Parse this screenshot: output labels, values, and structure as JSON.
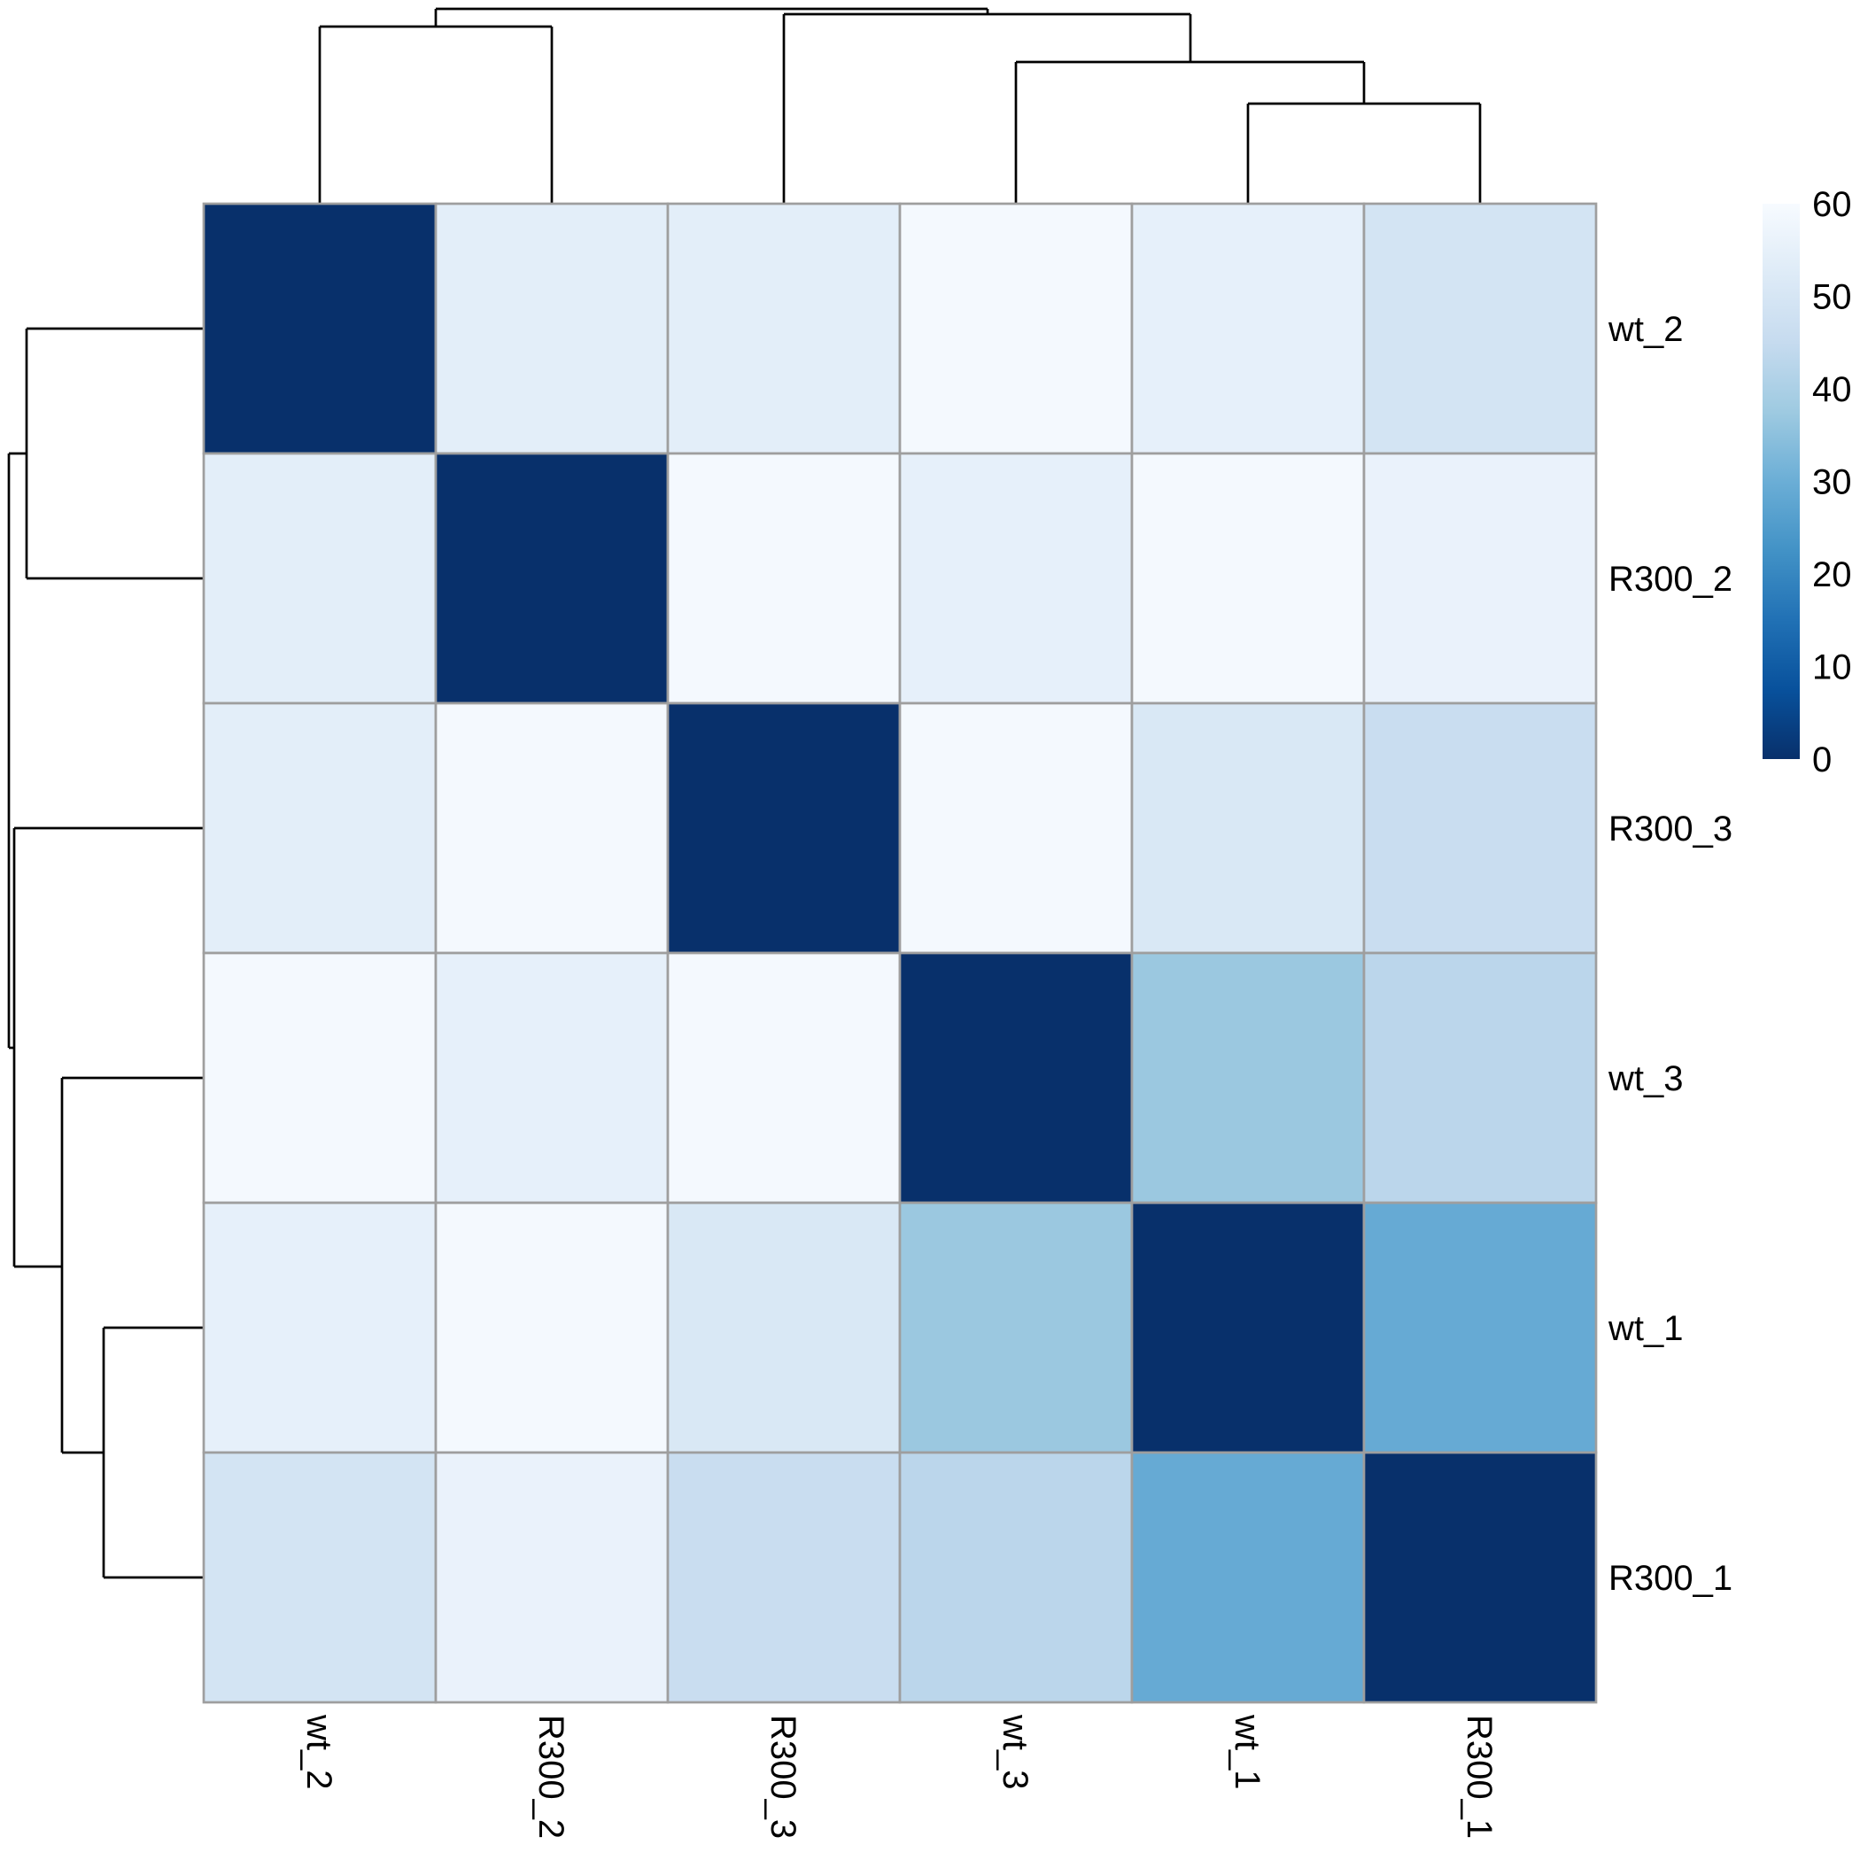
{
  "chart_data": {
    "type": "heatmap",
    "title": "",
    "xlabel": "",
    "ylabel": "",
    "col_labels": [
      "wt_2",
      "R300_2",
      "R300_3",
      "wt_3",
      "wt_1",
      "R300_1"
    ],
    "row_labels": [
      "wt_2",
      "R300_2",
      "R300_3",
      "wt_3",
      "wt_1",
      "R300_1"
    ],
    "values": [
      [
        0,
        54,
        54,
        59,
        55,
        49
      ],
      [
        54,
        0,
        59,
        55,
        59,
        56
      ],
      [
        54,
        59,
        0,
        59,
        51,
        46
      ],
      [
        59,
        55,
        59,
        0,
        37,
        43
      ],
      [
        55,
        59,
        51,
        37,
        0,
        29
      ],
      [
        49,
        56,
        46,
        43,
        29,
        0
      ]
    ],
    "colorscale": {
      "min": 0,
      "max": 60,
      "ticks": [
        "60",
        "50",
        "40",
        "30",
        "20",
        "10",
        "0"
      ],
      "colors": [
        "#08306b",
        "#08519c",
        "#2171b5",
        "#4292c6",
        "#6baed6",
        "#9ecae1",
        "#c6dbef",
        "#deebf7",
        "#f7fbff"
      ]
    },
    "col_dendrogram": [
      {
        "members": [
          "wt_3",
          "wt_1",
          "R300_1"
        ],
        "merge": [
          "wt_3",
          [
            "wt_1",
            "R300_1"
          ]
        ],
        "height_rank": 3
      },
      {
        "members": [
          "wt_1",
          "R300_1"
        ],
        "height_rank": 1
      },
      {
        "members": [
          "wt_2",
          "R300_2"
        ],
        "height_rank": 4
      },
      {
        "members": [
          "R300_3",
          "wt_3",
          "wt_1",
          "R300_1"
        ],
        "height_rank": 5
      },
      {
        "members": [
          "all"
        ],
        "height_rank": 6
      }
    ],
    "legend": "right",
    "grid": true
  }
}
